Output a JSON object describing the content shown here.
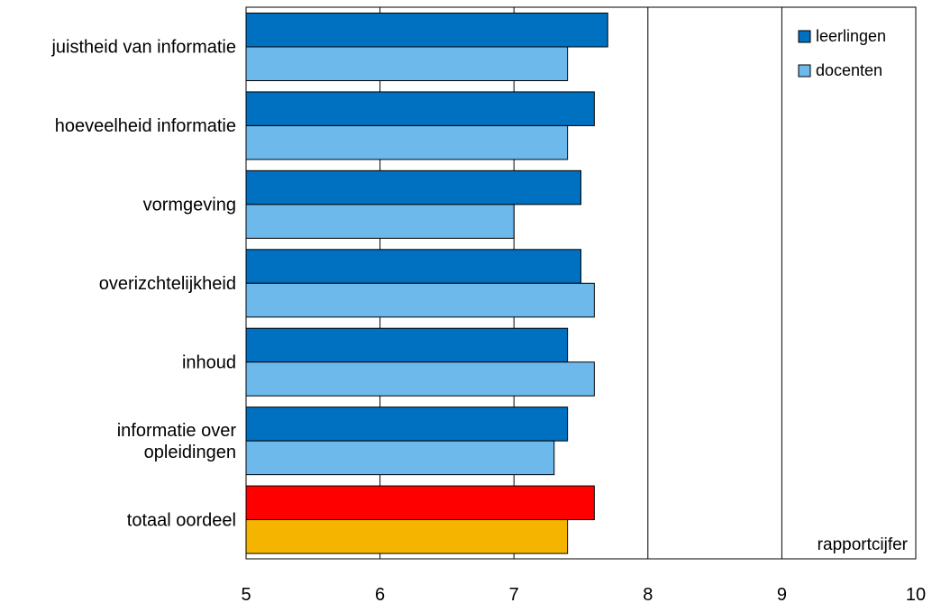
{
  "chart_data": {
    "type": "bar",
    "orientation": "horizontal",
    "categories": [
      [
        "juistheid van informatie"
      ],
      [
        "hoeveelheid informatie"
      ],
      [
        "vormgeving"
      ],
      [
        "overizchtelijkheid"
      ],
      [
        "inhoud"
      ],
      [
        "informatie over",
        "opleidingen"
      ],
      [
        "totaal oordeel"
      ]
    ],
    "series": [
      {
        "name": "leerlingen",
        "values": [
          7.7,
          7.6,
          7.5,
          7.5,
          7.4,
          7.4,
          7.6
        ],
        "color": "#0070C0",
        "highlight_last_color": "#FF0000"
      },
      {
        "name": "docenten",
        "values": [
          7.4,
          7.4,
          7.0,
          7.6,
          7.6,
          7.3,
          7.4
        ],
        "color": "#6DB9EB",
        "highlight_last_color": "#F5B400"
      }
    ],
    "xlim": [
      5,
      10
    ],
    "xticks": [
      "5",
      "6",
      "7",
      "8",
      "9",
      "10"
    ],
    "gridlines_at": [
      6,
      7,
      8,
      9
    ],
    "legend_position": "top-right",
    "annotation": "rapportcijfer"
  }
}
